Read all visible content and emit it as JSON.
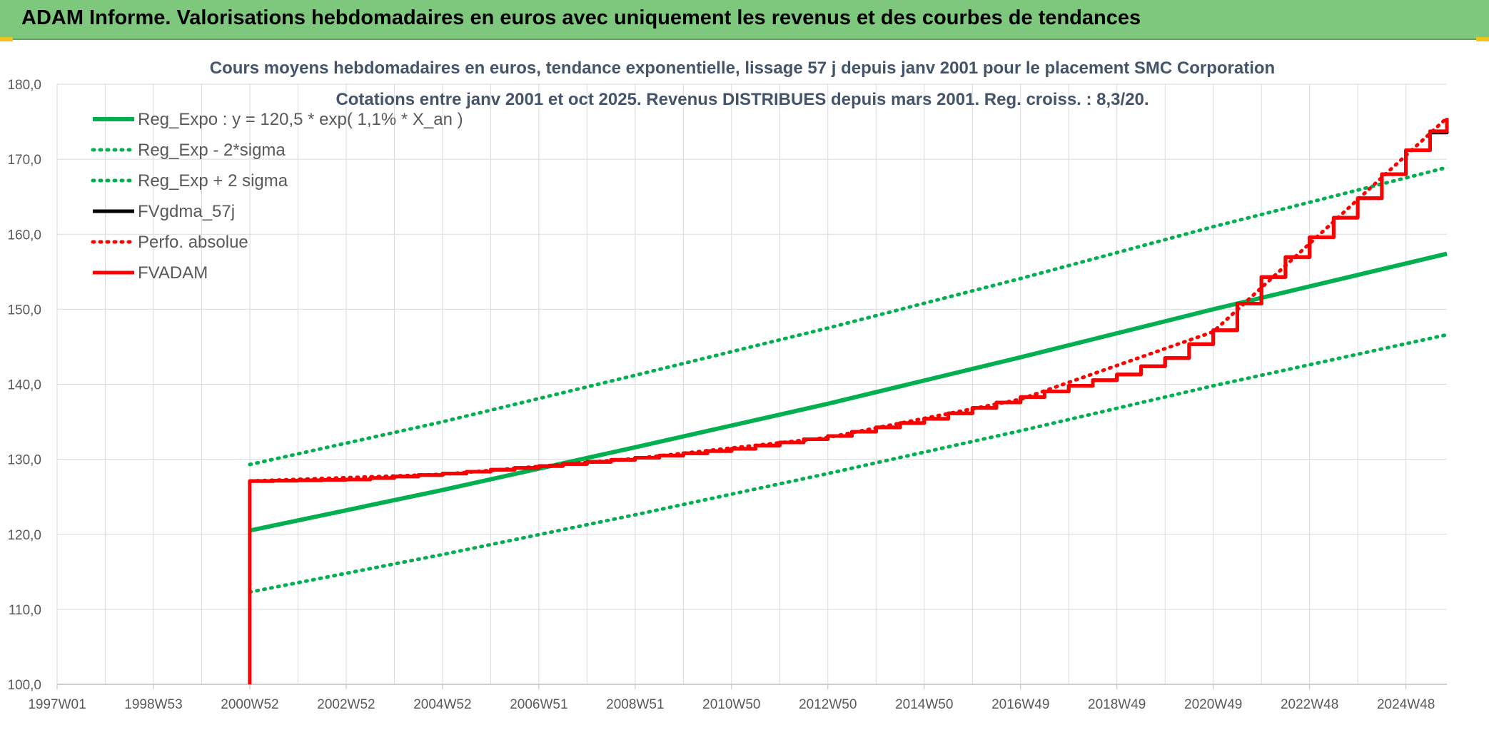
{
  "banner": {
    "title": "ADAM Informe. Valorisations hebdomadaires en euros avec uniquement les revenus et des courbes de tendances"
  },
  "colors": {
    "banner": "#7ec87e",
    "reg_green": "#00b050",
    "black": "#000000",
    "red": "#ff0000",
    "grid": "#d9d9d9",
    "title_text": "#44546a",
    "axis_text": "#595959"
  },
  "chart_data": {
    "type": "line",
    "title": "Cours moyens hebdomadaires en euros, tendance exponentielle, lissage 57 j depuis janv 2001 pour le placement SMC Corporation",
    "subtitle": "Cotations entre janv 2001 et oct 2025. Revenus DISTRIBUES depuis mars 2001. Reg. croiss. : 8,3/20.",
    "xlabel": "",
    "ylabel": "",
    "x_tick_labels": [
      "1997W01",
      "1998W53",
      "2000W52",
      "2002W52",
      "2004W52",
      "2006W51",
      "2008W51",
      "2010W50",
      "2012W50",
      "2014W50",
      "2016W49",
      "2018W49",
      "2020W49",
      "2022W48",
      "2024W48"
    ],
    "x_tick_years": [
      1997.0,
      1999.0,
      2001.0,
      2003.0,
      2005.0,
      2007.0,
      2009.0,
      2011.0,
      2013.0,
      2015.0,
      2017.0,
      2019.0,
      2021.0,
      2023.0,
      2025.0
    ],
    "xlim": [
      1997.0,
      2025.85
    ],
    "ylim": [
      100,
      180
    ],
    "y_ticks": [
      100,
      110,
      120,
      130,
      140,
      150,
      160,
      170,
      180
    ],
    "y_tick_labels": [
      "100,0",
      "110,0",
      "120,0",
      "130,0",
      "140,0",
      "150,0",
      "160,0",
      "170,0",
      "180,0"
    ],
    "grid": true,
    "legend_position": "top-left",
    "series": [
      {
        "name": "Reg_Expo : y = 120,5 * exp( 1,1% *  X_an )",
        "color": "#00b050",
        "style": "solid",
        "x": [
          2001.0,
          2005.0,
          2009.0,
          2013.0,
          2017.0,
          2021.0,
          2025.85
        ],
        "y": [
          120.5,
          125.9,
          131.6,
          137.4,
          143.6,
          150.0,
          157.4
        ]
      },
      {
        "name": "Reg_Exp - 2*sigma",
        "color": "#00b050",
        "style": "dotted",
        "x": [
          2001.0,
          2005.0,
          2009.0,
          2013.0,
          2017.0,
          2021.0,
          2025.85
        ],
        "y": [
          112.3,
          117.3,
          122.6,
          128.1,
          133.8,
          139.8,
          146.6
        ]
      },
      {
        "name": "Reg_Exp + 2 sigma",
        "color": "#00b050",
        "style": "dotted",
        "x": [
          2001.0,
          2005.0,
          2009.0,
          2013.0,
          2017.0,
          2021.0,
          2025.85
        ],
        "y": [
          129.3,
          135.0,
          141.2,
          147.5,
          154.1,
          161.0,
          168.9
        ]
      },
      {
        "name": "FVgdma_57j",
        "color": "#000000",
        "style": "solid",
        "x": [
          2001.0,
          2003.0,
          2005.0,
          2007.0,
          2009.0,
          2011.0,
          2013.0,
          2015.0,
          2017.0,
          2019.0,
          2020.0,
          2021.0,
          2022.0,
          2023.0,
          2024.0,
          2025.0,
          2025.85
        ],
        "y": [
          127.1,
          127.3,
          128.1,
          129.1,
          130.2,
          131.4,
          133.1,
          135.4,
          138.3,
          141.3,
          143.5,
          147.2,
          154.3,
          159.6,
          164.8,
          171.2,
          175.2
        ]
      },
      {
        "name": "Perfo. absolue",
        "color": "#ff0000",
        "style": "dotted",
        "x": [
          2001.0,
          2005.0,
          2009.0,
          2013.0,
          2017.0,
          2021.0,
          2025.85
        ],
        "y": [
          127.1,
          128.0,
          130.1,
          132.9,
          138.0,
          147.0,
          175.5
        ]
      },
      {
        "name": "FVADAM",
        "color": "#ff0000",
        "style": "solid",
        "x": [
          2001.0,
          2001.0,
          2003.0,
          2005.0,
          2007.0,
          2009.0,
          2011.0,
          2013.0,
          2015.0,
          2017.0,
          2019.0,
          2020.0,
          2021.0,
          2022.0,
          2023.0,
          2024.0,
          2025.0,
          2025.85
        ],
        "y": [
          100.0,
          127.1,
          127.3,
          128.1,
          129.1,
          130.2,
          131.4,
          133.1,
          135.4,
          138.3,
          141.3,
          143.5,
          147.2,
          154.3,
          159.6,
          164.8,
          171.2,
          175.5
        ]
      }
    ]
  }
}
